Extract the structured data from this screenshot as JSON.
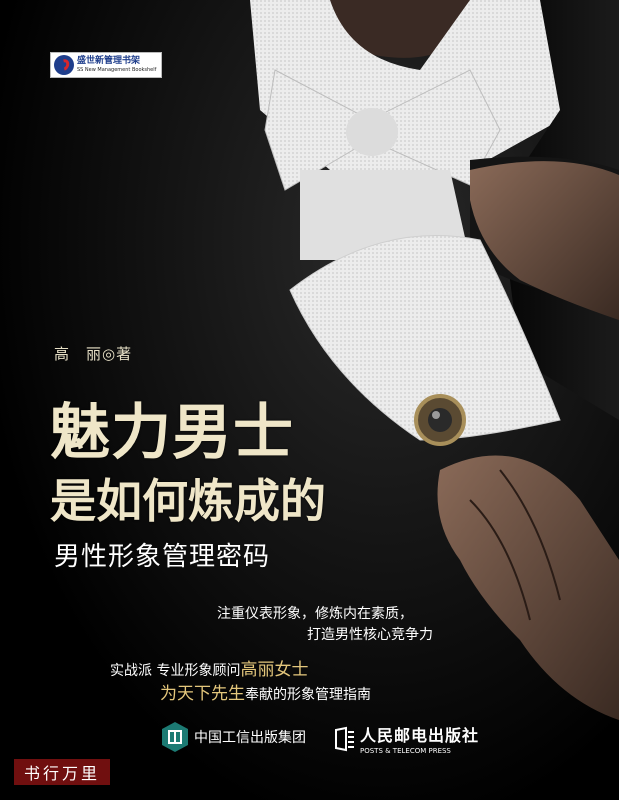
{
  "series": {
    "name": "盛世新管理书架",
    "name_en": "SS New Management Bookshelf"
  },
  "author": "高　丽◎著",
  "title_line1": "魅力男士",
  "title_line2": "是如何炼成的",
  "subtitle": "男性形象管理密码",
  "taglines": [
    "注重仪表形象，修炼内在素质，",
    "打造男性核心竞争力"
  ],
  "credit": {
    "line1_prefix": "实战派 专业形象顾问",
    "line1_highlight": "高丽女士",
    "line2_highlight": "为天下先生",
    "line2_suffix": "奉献的形象管理指南"
  },
  "publishers": {
    "first": "中国工信出版集团",
    "second": "人民邮电出版社",
    "second_en": "POSTS & TELECOM PRESS"
  },
  "watermark": "书行万里",
  "colors": {
    "title": "#efe6c8",
    "highlight": "#e4c77c",
    "series_blue": "#1f3e8c",
    "series_red": "#d8262b"
  }
}
